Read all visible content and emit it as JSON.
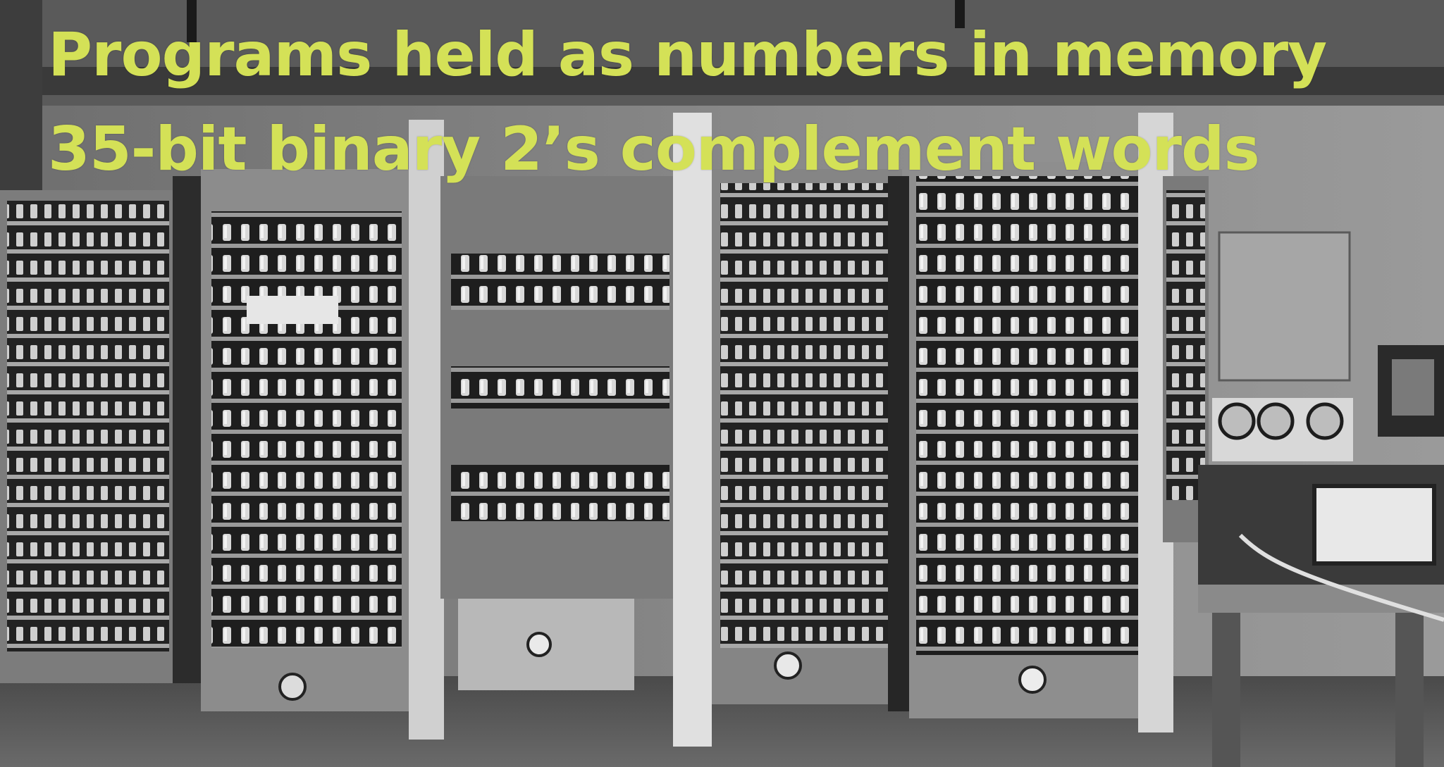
{
  "caption": {
    "line1": "Programs held as numbers in memory",
    "line2": "35-bit binary 2’s complement words"
  },
  "colors": {
    "caption_text": "#d4e157",
    "photo_tone": "grayscale"
  },
  "photo": {
    "subject": "early-stored-program-computer-racks"
  }
}
